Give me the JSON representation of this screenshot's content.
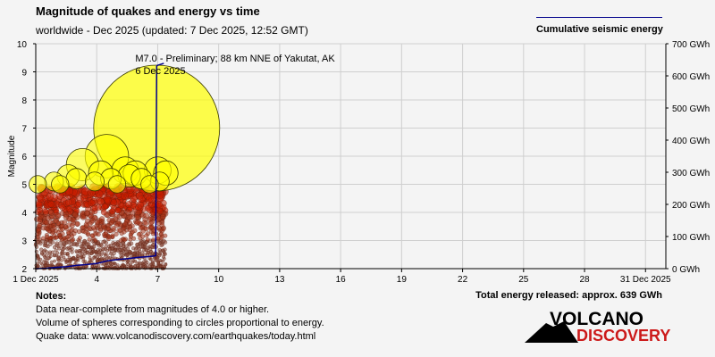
{
  "header": {
    "title": "Magnitude of quakes and energy vs time",
    "subtitle": "worldwide - Dec 2025 (updated: 7 Dec 2025, 12:52 GMT)"
  },
  "legend": {
    "label": "Cumulative seismic energy",
    "line_color": "#00008b"
  },
  "notes": {
    "heading": "Notes:",
    "line1": "Data near-complete from magnitudes of 4.0 or higher.",
    "line2": "Volume of spheres corresponding to circles proportional to energy.",
    "line3": "Quake data: www.volcanodiscovery.com/earthquakes/today.html"
  },
  "total_energy": "Total energy released: approx. 639 GWh",
  "logo": {
    "word1": "VOLCANO",
    "word2": "DISCOVERY"
  },
  "chart_data": {
    "type": "scatter",
    "ylabel": "Magnitude",
    "y2label": "",
    "xlim": [
      1,
      32
    ],
    "ylim": [
      2,
      10
    ],
    "y2lim": [
      0,
      700
    ],
    "x_ticks": [
      1,
      4,
      7,
      10,
      13,
      16,
      19,
      22,
      25,
      28,
      31
    ],
    "x_tick_labels": [
      "1 Dec 2025",
      "4",
      "7",
      "10",
      "13",
      "16",
      "19",
      "22",
      "25",
      "28",
      "31 Dec 2025"
    ],
    "y_ticks": [
      2,
      3,
      4,
      5,
      6,
      7,
      8,
      9,
      10
    ],
    "y_tick_labels": [
      "2",
      "3",
      "4",
      "5",
      "6",
      "7",
      "8",
      "9",
      "10"
    ],
    "y2_ticks": [
      0,
      100,
      200,
      300,
      400,
      500,
      600,
      700
    ],
    "y2_tick_labels": [
      "0 GWh",
      "100 GWh",
      "200 GWh",
      "300 GWh",
      "400 GWh",
      "500 GWh",
      "600 GWh",
      "700 GWh"
    ],
    "grid": true,
    "legend_placement": "top-right",
    "colors": {
      "major": "#ffff00",
      "minor": "#cc1a00",
      "tiny": "#8b3a1a",
      "energy_line": "#00008b"
    },
    "annotation": {
      "line1": "M7.0 - Preliminary; 88 km NNE of Yakutat, AK",
      "line2": "6 Dec 2025",
      "x": 6.95,
      "mag": 7.0
    },
    "major_quakes": [
      {
        "x": 1.1,
        "mag": 5.0
      },
      {
        "x": 1.9,
        "mag": 5.1
      },
      {
        "x": 2.2,
        "mag": 5.0
      },
      {
        "x": 2.6,
        "mag": 5.3
      },
      {
        "x": 3.0,
        "mag": 5.2
      },
      {
        "x": 3.3,
        "mag": 5.7
      },
      {
        "x": 3.9,
        "mag": 5.1
      },
      {
        "x": 4.2,
        "mag": 5.4
      },
      {
        "x": 4.5,
        "mag": 6.0
      },
      {
        "x": 4.7,
        "mag": 5.2
      },
      {
        "x": 5.0,
        "mag": 5.0
      },
      {
        "x": 5.4,
        "mag": 5.5
      },
      {
        "x": 5.6,
        "mag": 5.3
      },
      {
        "x": 5.9,
        "mag": 5.4
      },
      {
        "x": 6.2,
        "mag": 5.2
      },
      {
        "x": 6.6,
        "mag": 5.0
      },
      {
        "x": 6.95,
        "mag": 7.0
      },
      {
        "x": 7.0,
        "mag": 5.5
      },
      {
        "x": 7.1,
        "mag": 5.1
      },
      {
        "x": 7.4,
        "mag": 5.4
      }
    ],
    "energy_series": {
      "name": "Cumulative seismic energy",
      "x": [
        1.0,
        1.5,
        2.0,
        2.5,
        3.0,
        3.5,
        4.0,
        4.5,
        5.0,
        5.5,
        6.0,
        6.5,
        6.9,
        6.95,
        7.0,
        7.2,
        7.3
      ],
      "y_gwh": [
        0,
        1,
        4,
        6,
        10,
        13,
        16,
        24,
        28,
        31,
        35,
        37,
        40,
        630,
        633,
        637,
        639
      ]
    }
  }
}
